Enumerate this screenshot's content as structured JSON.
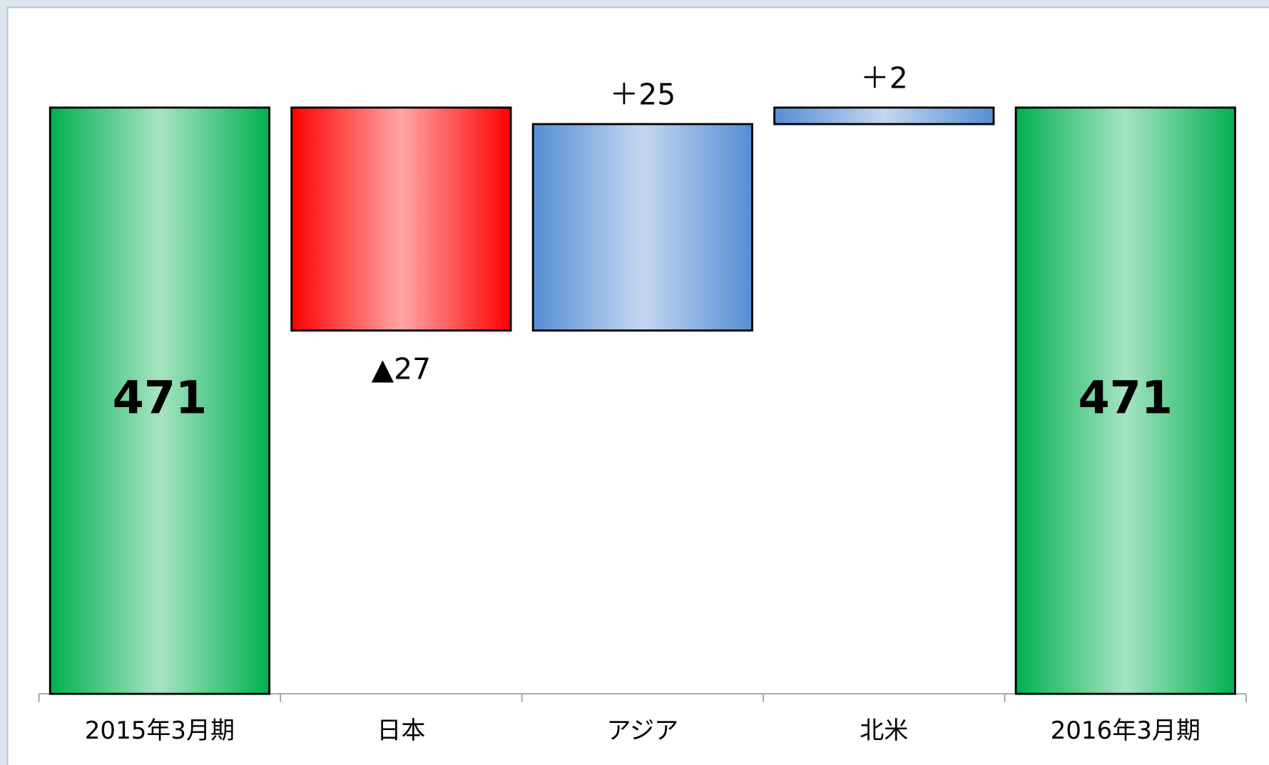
{
  "chart_data": {
    "type": "waterfall",
    "categories": [
      "2015年3月期",
      "日本",
      "アジア",
      "北米",
      "2016年3月期"
    ],
    "values": [
      471,
      -27,
      25,
      2,
      471
    ],
    "value_labels": [
      "471",
      "▲27",
      "＋25",
      "＋2",
      "471"
    ],
    "is_total": [
      true,
      false,
      false,
      false,
      true
    ],
    "colors": {
      "total": "#00b050",
      "increase": "#558ed5",
      "decrease": "#ff0000"
    },
    "ylim": [
      400,
      483
    ]
  }
}
